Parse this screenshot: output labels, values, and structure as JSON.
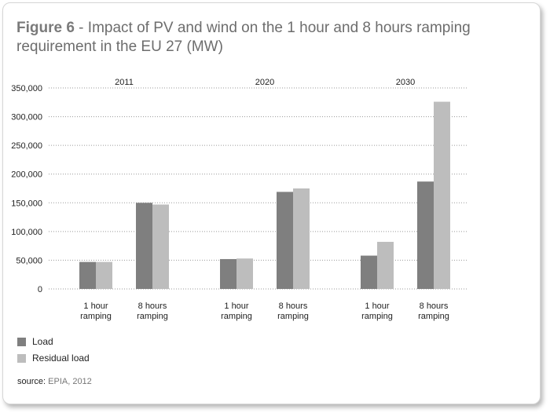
{
  "title": {
    "figure_label": "Figure 6",
    "separator": " - ",
    "text": "Impact of PV and wind on the 1 hour and 8 hours ramping requirement in the EU 27 (MW)"
  },
  "colors": {
    "load": "#7f7f7f",
    "residual_load": "#bdbdbd",
    "grid": "#9a9a9a"
  },
  "chart_data": {
    "type": "bar",
    "title": "Impact of PV and wind on the 1 hour and 8 hours ramping requirement in the EU 27 (MW)",
    "groups": [
      {
        "name": "2011",
        "categories": [
          "1 hour\nramping",
          "8 hours\nramping"
        ]
      },
      {
        "name": "2020",
        "categories": [
          "1 hour\nramping",
          "8 hours\nramping"
        ]
      },
      {
        "name": "2030",
        "categories": [
          "1 hour\nramping",
          "8 hours\nramping"
        ]
      }
    ],
    "category_lines": [
      [
        "1 hour",
        "ramping"
      ],
      [
        "8 hours",
        "ramping"
      ]
    ],
    "series": [
      {
        "name": "Load",
        "values": [
          [
            47000,
            150000
          ],
          [
            52000,
            169000
          ],
          [
            58000,
            187000
          ]
        ]
      },
      {
        "name": "Residual load",
        "values": [
          [
            47000,
            147000
          ],
          [
            53000,
            175000
          ],
          [
            82000,
            326000
          ]
        ]
      }
    ],
    "ylim": [
      0,
      350000
    ],
    "yticks": [
      "0",
      "50,000",
      "100,000",
      "150,000",
      "200,000",
      "250,000",
      "300,000",
      "350,000"
    ],
    "ytick_values": [
      0,
      50000,
      100000,
      150000,
      200000,
      250000,
      300000,
      350000
    ],
    "grid": true,
    "legend_position": "bottom-left"
  },
  "legend": [
    {
      "label": "Load"
    },
    {
      "label": "Residual load"
    }
  ],
  "source": {
    "prefix": "source: ",
    "value": "EPIA, 2012"
  }
}
